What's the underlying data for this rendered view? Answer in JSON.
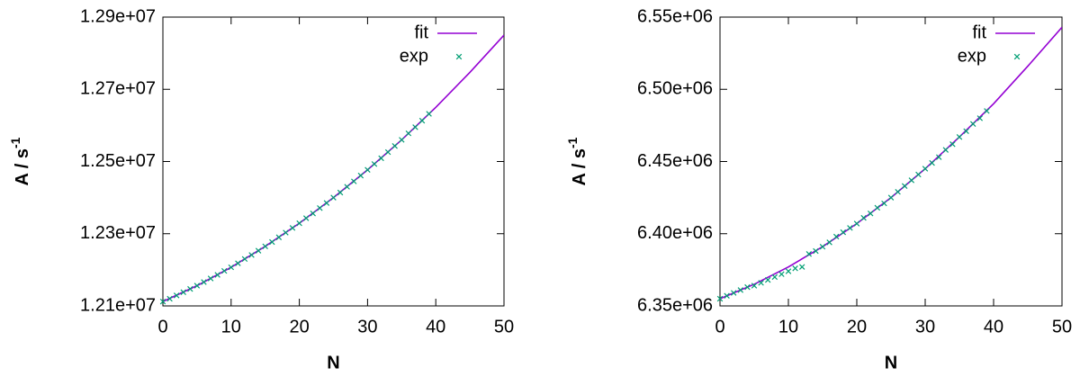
{
  "chart_data": [
    {
      "type": "line",
      "xlabel": "N",
      "ylabel": "A / s",
      "ylabel_sup": "-1",
      "legend": "upper right",
      "xlim": [
        0,
        50
      ],
      "xticks": [
        0,
        10,
        20,
        30,
        40,
        50
      ],
      "ylim": [
        12100000,
        12900000
      ],
      "yticks": [
        {
          "value": 12100000,
          "label": "1.21e+07"
        },
        {
          "value": 12300000,
          "label": "1.23e+07"
        },
        {
          "value": 12500000,
          "label": "1.25e+07"
        },
        {
          "value": 12700000,
          "label": "1.27e+07"
        },
        {
          "value": 12900000,
          "label": "1.29e+07"
        }
      ],
      "series": [
        {
          "name": "fit",
          "color": "#9400d3",
          "type": "line",
          "x": [
            0,
            5,
            10,
            15,
            20,
            25,
            30,
            35,
            40,
            45,
            50
          ],
          "values": [
            12112000,
            12156000,
            12207000,
            12265000,
            12329000,
            12400000,
            12477000,
            12560000,
            12650000,
            12747000,
            12850000
          ]
        },
        {
          "name": "exp",
          "color": "#009e73",
          "type": "scatter",
          "x": [
            0,
            1,
            2,
            3,
            4,
            5,
            6,
            7,
            8,
            9,
            10,
            11,
            12,
            13,
            14,
            15,
            16,
            17,
            18,
            19,
            20,
            21,
            22,
            23,
            24,
            25,
            26,
            27,
            28,
            29,
            30,
            31,
            32,
            33,
            34,
            35,
            36,
            37,
            38,
            39
          ],
          "values": [
            12112000,
            12120000,
            12129000,
            12138000,
            12147000,
            12156000,
            12166000,
            12176000,
            12186000,
            12197000,
            12207000,
            12218000,
            12230000,
            12241000,
            12253000,
            12265000,
            12277000,
            12290000,
            12303000,
            12316000,
            12329000,
            12343000,
            12356000,
            12371000,
            12385000,
            12400000,
            12414000,
            12430000,
            12445000,
            12461000,
            12477000,
            12493000,
            12509000,
            12526000,
            12543000,
            12560000,
            12578000,
            12595000,
            12613000,
            12632000
          ]
        }
      ]
    },
    {
      "type": "line",
      "xlabel": "N",
      "ylabel": "A / s",
      "ylabel_sup": "-1",
      "legend": "upper right",
      "xlim": [
        0,
        50
      ],
      "xticks": [
        0,
        10,
        20,
        30,
        40,
        50
      ],
      "ylim": [
        6350000,
        6550000
      ],
      "yticks": [
        {
          "value": 6350000,
          "label": "6.35e+06"
        },
        {
          "value": 6400000,
          "label": "6.40e+06"
        },
        {
          "value": 6450000,
          "label": "6.45e+06"
        },
        {
          "value": 6500000,
          "label": "6.50e+06"
        },
        {
          "value": 6550000,
          "label": "6.55e+06"
        }
      ],
      "series": [
        {
          "name": "fit",
          "color": "#9400d3",
          "type": "line",
          "x": [
            0,
            5,
            10,
            15,
            20,
            25,
            30,
            35,
            40,
            45,
            50
          ],
          "values": [
            6355000,
            6365000,
            6377000,
            6391000,
            6407000,
            6425000,
            6445000,
            6467000,
            6490000,
            6516000,
            6543000
          ]
        },
        {
          "name": "exp",
          "color": "#009e73",
          "type": "scatter",
          "x": [
            0,
            1,
            2,
            3,
            4,
            5,
            6,
            7,
            8,
            9,
            10,
            11,
            12,
            13,
            14,
            15,
            16,
            17,
            18,
            19,
            20,
            21,
            22,
            23,
            24,
            25,
            26,
            27,
            28,
            29,
            30,
            31,
            32,
            33,
            34,
            35,
            36,
            37,
            38,
            39
          ],
          "values": [
            6355000,
            6357000,
            6359000,
            6361000,
            6363000,
            6364000,
            6366000,
            6368000,
            6370000,
            6372000,
            6374000,
            6376000,
            6377000,
            6386000,
            6388000,
            6391000,
            6394000,
            6398000,
            6401000,
            6404000,
            6407000,
            6411000,
            6414000,
            6418000,
            6421000,
            6425000,
            6429000,
            6433000,
            6437000,
            6441000,
            6445000,
            6449000,
            6453000,
            6458000,
            6462000,
            6467000,
            6471000,
            6476000,
            6480000,
            6485000
          ]
        }
      ]
    }
  ]
}
